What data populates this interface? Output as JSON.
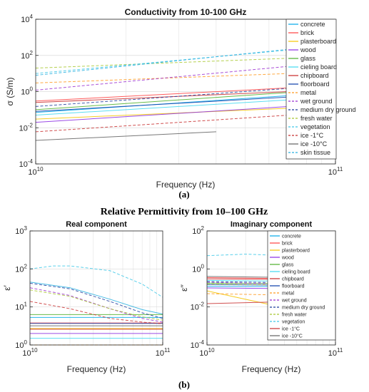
{
  "panel_a_label": "(a)",
  "panel_b_label": "(b)",
  "figure_b_title": "Relative Permittivity from 10–100 GHz",
  "colors": {
    "concrete": "#00a8e8",
    "brick": "#ff4040",
    "plasterboard": "#f5c400",
    "wood": "#8a2be2",
    "glass": "#4caf2a",
    "cieling board": "#40d8f0",
    "chipboard": "#c82828",
    "floorboard": "#0a3ca8",
    "metal": "#ff9a20",
    "wet ground": "#9b30d0",
    "medium dry ground": "#1e3c9c",
    "fresh water": "#a8c830",
    "vegetation": "#40c8e8",
    "ice -1°C": "#c83030",
    "ice -10°C": "#606060",
    "skin tissue": "#2ab0e0"
  },
  "chart_data": [
    {
      "id": "a",
      "type": "line",
      "title": "Conductivity from 10-100 GHz",
      "xlabel": "Frequency (Hz)",
      "ylabel": "σ (S/m)",
      "xscale": "log",
      "yscale": "log",
      "xlim": [
        10000000000.0,
        100000000000.0
      ],
      "ylim": [
        0.0001,
        10000
      ],
      "xticks": [
        {
          "v": 10000000000.0,
          "b": "10",
          "e": "10"
        },
        {
          "v": 100000000000.0,
          "b": "10",
          "e": "11"
        }
      ],
      "yticks": [
        {
          "v": 0.0001,
          "b": "10",
          "e": "-4"
        },
        {
          "v": 0.01,
          "b": "10",
          "e": "-2"
        },
        {
          "v": 1,
          "b": "10",
          "e": "0"
        },
        {
          "v": 100,
          "b": "10",
          "e": "2"
        },
        {
          "v": 10000,
          "b": "10",
          "e": "4"
        }
      ],
      "grid": true,
      "legend_position": "right",
      "series": [
        {
          "name": "concrete",
          "dash": false,
          "points": [
            [
              10000000000.0,
              0.07
            ],
            [
              70000000000.0,
              0.6
            ]
          ]
        },
        {
          "name": "brick",
          "dash": false,
          "points": [
            [
              10000000000.0,
              0.3
            ],
            [
              70000000000.0,
              1.6
            ]
          ]
        },
        {
          "name": "plasterboard",
          "dash": false,
          "points": [
            [
              10000000000.0,
              0.03
            ],
            [
              70000000000.0,
              0.12
            ]
          ]
        },
        {
          "name": "wood",
          "dash": false,
          "points": [
            [
              10000000000.0,
              0.02
            ],
            [
              70000000000.0,
              0.15
            ]
          ]
        },
        {
          "name": "glass",
          "dash": false,
          "points": [
            [
              10000000000.0,
              0.1
            ],
            [
              70000000000.0,
              0.9
            ]
          ]
        },
        {
          "name": "cieling board",
          "dash": false,
          "points": [
            [
              10000000000.0,
              0.05
            ],
            [
              70000000000.0,
              0.35
            ]
          ]
        },
        {
          "name": "chipboard",
          "dash": false,
          "points": [
            [
              10000000000.0,
              0.25
            ],
            [
              70000000000.0,
              1.0
            ]
          ]
        },
        {
          "name": "floorboard",
          "dash": false,
          "points": [
            [
              10000000000.0,
              0.08
            ],
            [
              70000000000.0,
              0.5
            ]
          ]
        },
        {
          "name": "metal",
          "dash": true,
          "points": [
            [
              10000000000.0,
              3.0
            ],
            [
              70000000000.0,
              10.0
            ]
          ]
        },
        {
          "name": "wet ground",
          "dash": true,
          "points": [
            [
              10000000000.0,
              1.2
            ],
            [
              70000000000.0,
              25.0
            ]
          ]
        },
        {
          "name": "medium dry ground",
          "dash": true,
          "points": [
            [
              10000000000.0,
              0.15
            ],
            [
              70000000000.0,
              1.5
            ]
          ]
        },
        {
          "name": "fresh water",
          "dash": true,
          "points": [
            [
              10000000000.0,
              20.0
            ],
            [
              70000000000.0,
              70.0
            ]
          ]
        },
        {
          "name": "vegetation",
          "dash": true,
          "points": [
            [
              10000000000.0,
              10.0
            ],
            [
              70000000000.0,
              200.0
            ]
          ]
        },
        {
          "name": "ice -1°C",
          "dash": true,
          "points": [
            [
              10000000000.0,
              0.006
            ],
            [
              70000000000.0,
              0.05
            ]
          ]
        },
        {
          "name": "ice -10°C",
          "dash": false,
          "points": [
            [
              10000000000.0,
              0.002
            ],
            [
              40000000000.0,
              0.006
            ]
          ]
        },
        {
          "name": "skin tissue",
          "dash": true,
          "points": [
            [
              10000000000.0,
              8.0
            ],
            [
              70000000000.0,
              220.0
            ]
          ]
        }
      ]
    },
    {
      "id": "b1",
      "type": "line",
      "title": "Real component",
      "xlabel": "Frequency (Hz)",
      "ylabel": "ε′",
      "xscale": "log",
      "yscale": "log",
      "xlim": [
        10000000000.0,
        100000000000.0
      ],
      "ylim": [
        1,
        1000
      ],
      "xticks": [
        {
          "v": 10000000000.0,
          "b": "10",
          "e": "10"
        },
        {
          "v": 100000000000.0,
          "b": "10",
          "e": "11"
        }
      ],
      "yticks": [
        {
          "v": 1,
          "b": "10",
          "e": "0"
        },
        {
          "v": 10,
          "b": "10",
          "e": "1"
        },
        {
          "v": 100,
          "b": "10",
          "e": "2"
        },
        {
          "v": 1000,
          "b": "10",
          "e": "3"
        }
      ],
      "grid": true,
      "legend_position": "none",
      "series": [
        {
          "name": "concrete",
          "dash": false,
          "points": [
            [
              10000000000.0,
              5.3
            ],
            [
              100000000000.0,
              5.3
            ]
          ]
        },
        {
          "name": "brick",
          "dash": false,
          "points": [
            [
              10000000000.0,
              3.8
            ],
            [
              100000000000.0,
              3.8
            ]
          ]
        },
        {
          "name": "plasterboard",
          "dash": false,
          "points": [
            [
              10000000000.0,
              2.7
            ],
            [
              100000000000.0,
              2.7
            ]
          ]
        },
        {
          "name": "wood",
          "dash": false,
          "points": [
            [
              10000000000.0,
              2.0
            ],
            [
              100000000000.0,
              2.0
            ]
          ]
        },
        {
          "name": "glass",
          "dash": false,
          "points": [
            [
              10000000000.0,
              6.3
            ],
            [
              100000000000.0,
              6.3
            ]
          ]
        },
        {
          "name": "cieling board",
          "dash": false,
          "points": [
            [
              10000000000.0,
              1.5
            ],
            [
              100000000000.0,
              1.5
            ]
          ]
        },
        {
          "name": "chipboard",
          "dash": false,
          "points": [
            [
              10000000000.0,
              2.6
            ],
            [
              100000000000.0,
              2.6
            ]
          ]
        },
        {
          "name": "floorboard",
          "dash": false,
          "points": [
            [
              10000000000.0,
              3.7
            ],
            [
              100000000000.0,
              3.7
            ]
          ]
        },
        {
          "name": "metal",
          "dash": true,
          "points": [
            [
              10000000000.0,
              1.0
            ],
            [
              100000000000.0,
              1.0
            ]
          ]
        },
        {
          "name": "wet ground",
          "dash": true,
          "points": [
            [
              10000000000.0,
              32.0
            ],
            [
              20000000000.0,
              20.0
            ],
            [
              40000000000.0,
              9.0
            ],
            [
              70000000000.0,
              5.0
            ],
            [
              100000000000.0,
              4.0
            ]
          ]
        },
        {
          "name": "medium dry ground",
          "dash": true,
          "points": [
            [
              10000000000.0,
              42.0
            ],
            [
              20000000000.0,
              30.0
            ],
            [
              40000000000.0,
              14.0
            ],
            [
              70000000000.0,
              7.0
            ],
            [
              100000000000.0,
              5.0
            ]
          ]
        },
        {
          "name": "fresh water",
          "dash": true,
          "points": [
            [
              10000000000.0,
              28.0
            ],
            [
              20000000000.0,
              19.0
            ],
            [
              40000000000.0,
              9.0
            ],
            [
              70000000000.0,
              5.5
            ],
            [
              100000000000.0,
              4.5
            ]
          ]
        },
        {
          "name": "vegetation",
          "dash": true,
          "points": [
            [
              10000000000.0,
              100.0
            ],
            [
              15000000000.0,
              120.0
            ],
            [
              20000000000.0,
              120.0
            ],
            [
              40000000000.0,
              90.0
            ],
            [
              70000000000.0,
              40.0
            ],
            [
              100000000000.0,
              18.0
            ]
          ]
        },
        {
          "name": "ice -1°C",
          "dash": true,
          "points": [
            [
              10000000000.0,
              14.0
            ],
            [
              20000000000.0,
              9.0
            ],
            [
              40000000000.0,
              5.0
            ],
            [
              70000000000.0,
              4.0
            ],
            [
              100000000000.0,
              3.6
            ]
          ]
        },
        {
          "name": "ice -10°C",
          "dash": false,
          "points": [
            [
              10000000000.0,
              3.2
            ],
            [
              100000000000.0,
              3.2
            ]
          ]
        },
        {
          "name": "skin tissue",
          "dash": false,
          "points": [
            [
              10000000000.0,
              45.0
            ],
            [
              20000000000.0,
              32.0
            ],
            [
              40000000000.0,
              16.0
            ],
            [
              70000000000.0,
              8.5
            ],
            [
              100000000000.0,
              6.5
            ]
          ]
        }
      ]
    },
    {
      "id": "b2",
      "type": "line",
      "title": "Imaginary component",
      "xlabel": "Frequency (Hz)",
      "ylabel": "ε′′",
      "xscale": "log",
      "yscale": "log",
      "xlim": [
        10000000000.0,
        100000000000.0
      ],
      "ylim": [
        0.0001,
        100
      ],
      "xticks": [
        {
          "v": 10000000000.0,
          "b": "10",
          "e": "10"
        },
        {
          "v": 100000000000.0,
          "b": "10",
          "e": "11"
        }
      ],
      "yticks": [
        {
          "v": 0.0001,
          "b": "10",
          "e": "-4"
        },
        {
          "v": 0.01,
          "b": "10",
          "e": "-2"
        },
        {
          "v": 1,
          "b": "10",
          "e": "0"
        },
        {
          "v": 100,
          "b": "10",
          "e": "2"
        }
      ],
      "grid": true,
      "legend_position": "right",
      "series": [
        {
          "name": "concrete",
          "dash": false,
          "points": [
            [
              10000000000.0,
              0.12
            ],
            [
              60000000000.0,
              0.12
            ]
          ]
        },
        {
          "name": "brick",
          "dash": false,
          "points": [
            [
              10000000000.0,
              0.35
            ],
            [
              60000000000.0,
              0.3
            ]
          ]
        },
        {
          "name": "plasterboard",
          "dash": false,
          "points": [
            [
              10000000000.0,
              0.07
            ],
            [
              60000000000.0,
              0.005
            ]
          ]
        },
        {
          "name": "wood",
          "dash": false,
          "points": [
            [
              10000000000.0,
              0.1
            ],
            [
              60000000000.0,
              0.09
            ]
          ]
        },
        {
          "name": "glass",
          "dash": false,
          "points": [
            [
              10000000000.0,
              0.18
            ],
            [
              60000000000.0,
              0.17
            ]
          ]
        },
        {
          "name": "cieling board",
          "dash": false,
          "points": [
            [
              10000000000.0,
              0.25
            ],
            [
              60000000000.0,
              0.22
            ]
          ]
        },
        {
          "name": "chipboard",
          "dash": false,
          "points": [
            [
              10000000000.0,
              0.3
            ],
            [
              60000000000.0,
              0.28
            ]
          ]
        },
        {
          "name": "floorboard",
          "dash": false,
          "points": [
            [
              10000000000.0,
              0.15
            ],
            [
              60000000000.0,
              0.14
            ]
          ]
        },
        {
          "name": "metal",
          "dash": true,
          "points": [
            [
              10000000000.0,
              0.05
            ],
            [
              60000000000.0,
              0.04
            ]
          ]
        },
        {
          "name": "wet ground",
          "dash": true,
          "points": [
            [
              10000000000.0,
              0.2
            ],
            [
              60000000000.0,
              0.15
            ]
          ]
        },
        {
          "name": "medium dry ground",
          "dash": true,
          "points": [
            [
              10000000000.0,
              0.22
            ],
            [
              60000000000.0,
              0.18
            ]
          ]
        },
        {
          "name": "fresh water",
          "dash": true,
          "points": [
            [
              10000000000.0,
              0.16
            ],
            [
              60000000000.0,
              0.14
            ]
          ]
        },
        {
          "name": "vegetation",
          "dash": true,
          "points": [
            [
              10000000000.0,
              5.0
            ],
            [
              20000000000.0,
              6.0
            ],
            [
              40000000000.0,
              5.0
            ],
            [
              60000000000.0,
              3.5
            ]
          ]
        },
        {
          "name": "ice -1°C",
          "dash": false,
          "points": [
            [
              10000000000.0,
              0.015
            ],
            [
              60000000000.0,
              0.02
            ]
          ]
        },
        {
          "name": "ice -10°C",
          "dash": false,
          "points": [
            [
              10000000000.0,
              0.4
            ],
            [
              60000000000.0,
              0.35
            ]
          ]
        }
      ]
    }
  ]
}
